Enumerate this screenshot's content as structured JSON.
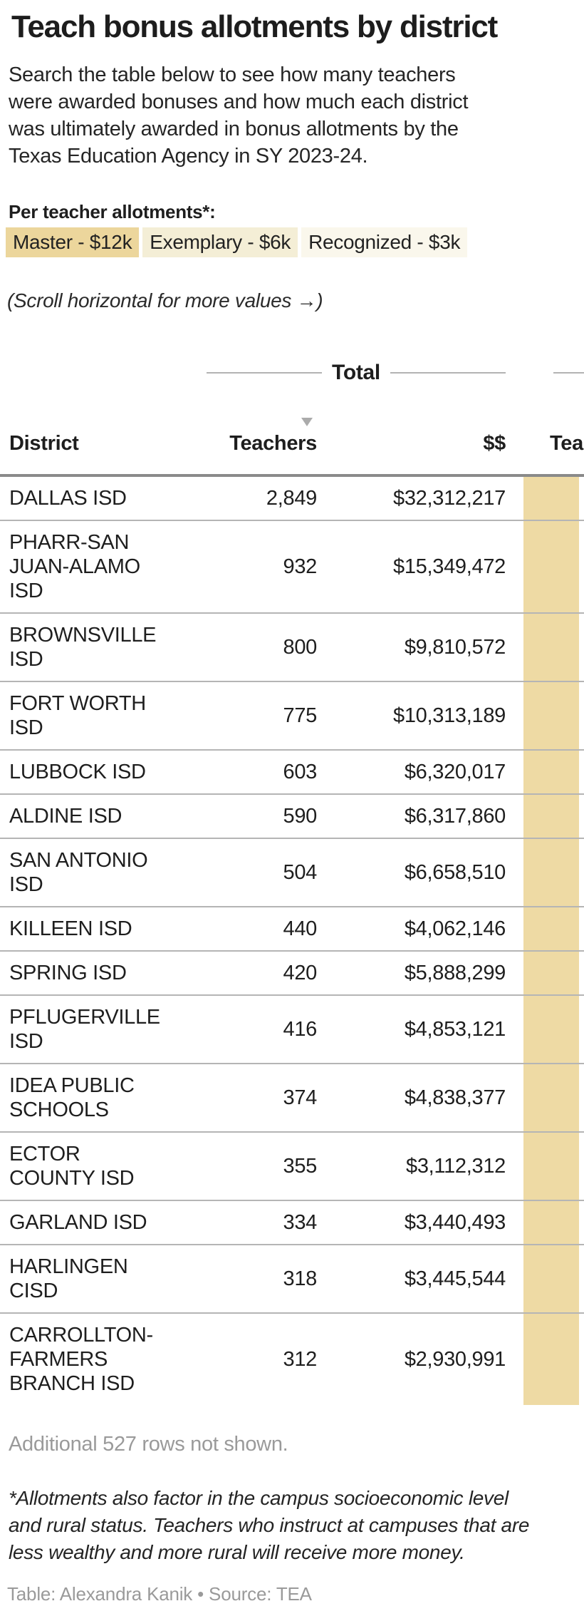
{
  "title": "Teach bonus allotments by district",
  "subtitle": "Search the table below to see how many teachers\nwere awarded bonuses and how much each district\nwas ultimately awarded in bonus allotments by the\nTexas Education Agency in SY 2023-24.",
  "legend": {
    "heading": "Per teacher allotments*:",
    "items": [
      {
        "label": "Master - $12k",
        "color": "#ecd69c"
      },
      {
        "label": "Exemplary - $6k",
        "color": "#f4eed6"
      },
      {
        "label": "Recognized - $3k",
        "color": "#faf7ec"
      }
    ]
  },
  "scroll_hint": "(Scroll horizontal for more values →)",
  "table": {
    "group_header": "Total",
    "columns": [
      "District",
      "Teachers",
      "$$"
    ],
    "partial_column_label": "Tea",
    "sorted_column": "Teachers",
    "sort_direction": "descending",
    "highlight_color": "#eedaa4",
    "rows": [
      {
        "district": "DALLAS ISD",
        "teachers": "2,849",
        "total": "$32,312,217"
      },
      {
        "district": "PHARR-SAN\nJUAN-ALAMO\nISD",
        "teachers": "932",
        "total": "$15,349,472"
      },
      {
        "district": "BROWNSVILLE\nISD",
        "teachers": "800",
        "total": "$9,810,572"
      },
      {
        "district": "FORT WORTH\nISD",
        "teachers": "775",
        "total": "$10,313,189"
      },
      {
        "district": "LUBBOCK ISD",
        "teachers": "603",
        "total": "$6,320,017"
      },
      {
        "district": "ALDINE ISD",
        "teachers": "590",
        "total": "$6,317,860"
      },
      {
        "district": "SAN ANTONIO\nISD",
        "teachers": "504",
        "total": "$6,658,510"
      },
      {
        "district": "KILLEEN ISD",
        "teachers": "440",
        "total": "$4,062,146"
      },
      {
        "district": "SPRING ISD",
        "teachers": "420",
        "total": "$5,888,299"
      },
      {
        "district": "PFLUGERVILLE\nISD",
        "teachers": "416",
        "total": "$4,853,121"
      },
      {
        "district": "IDEA PUBLIC\nSCHOOLS",
        "teachers": "374",
        "total": "$4,838,377"
      },
      {
        "district": "ECTOR\nCOUNTY ISD",
        "teachers": "355",
        "total": "$3,112,312"
      },
      {
        "district": "GARLAND ISD",
        "teachers": "334",
        "total": "$3,440,493"
      },
      {
        "district": "HARLINGEN\nCISD",
        "teachers": "318",
        "total": "$3,445,544"
      },
      {
        "district": "CARROLLTON-\nFARMERS\nBRANCH ISD",
        "teachers": "312",
        "total": "$2,930,991"
      }
    ]
  },
  "footer": {
    "more_rows": "Additional 527 rows not shown.",
    "footnote": "*Allotments also factor in the campus socioeconomic level\nand rural status. Teachers who instruct at campuses that are\nless wealthy and more rural will receive more money.",
    "credit": "Table: Alexandra Kanik • Source: TEA"
  },
  "chart_data": {
    "type": "table",
    "title": "Teach bonus allotments by district",
    "group_header": "Total",
    "columns": [
      "District",
      "Teachers (Total)",
      "$$ (Total)"
    ],
    "sorted_by": "Teachers (Total)",
    "sort_direction": "descending",
    "rows": [
      [
        "DALLAS ISD",
        2849,
        32312217
      ],
      [
        "PHARR-SAN JUAN-ALAMO ISD",
        932,
        15349472
      ],
      [
        "BROWNSVILLE ISD",
        800,
        9810572
      ],
      [
        "FORT WORTH ISD",
        775,
        10313189
      ],
      [
        "LUBBOCK ISD",
        603,
        6320017
      ],
      [
        "ALDINE ISD",
        590,
        6317860
      ],
      [
        "SAN ANTONIO ISD",
        504,
        6658510
      ],
      [
        "KILLEEN ISD",
        440,
        4062146
      ],
      [
        "SPRING ISD",
        420,
        5888299
      ],
      [
        "PFLUGERVILLE ISD",
        416,
        4853121
      ],
      [
        "IDEA PUBLIC SCHOOLS",
        374,
        4838377
      ],
      [
        "ECTOR COUNTY ISD",
        355,
        3112312
      ],
      [
        "GARLAND ISD",
        334,
        3440493
      ],
      [
        "HARLINGEN CISD",
        318,
        3445544
      ],
      [
        "CARROLLTON-FARMERS BRANCH ISD",
        312,
        2930991
      ]
    ],
    "additional_rows_not_shown": 527,
    "per_teacher_allotments": {
      "Master": 12000,
      "Exemplary": 6000,
      "Recognized": 3000
    }
  }
}
